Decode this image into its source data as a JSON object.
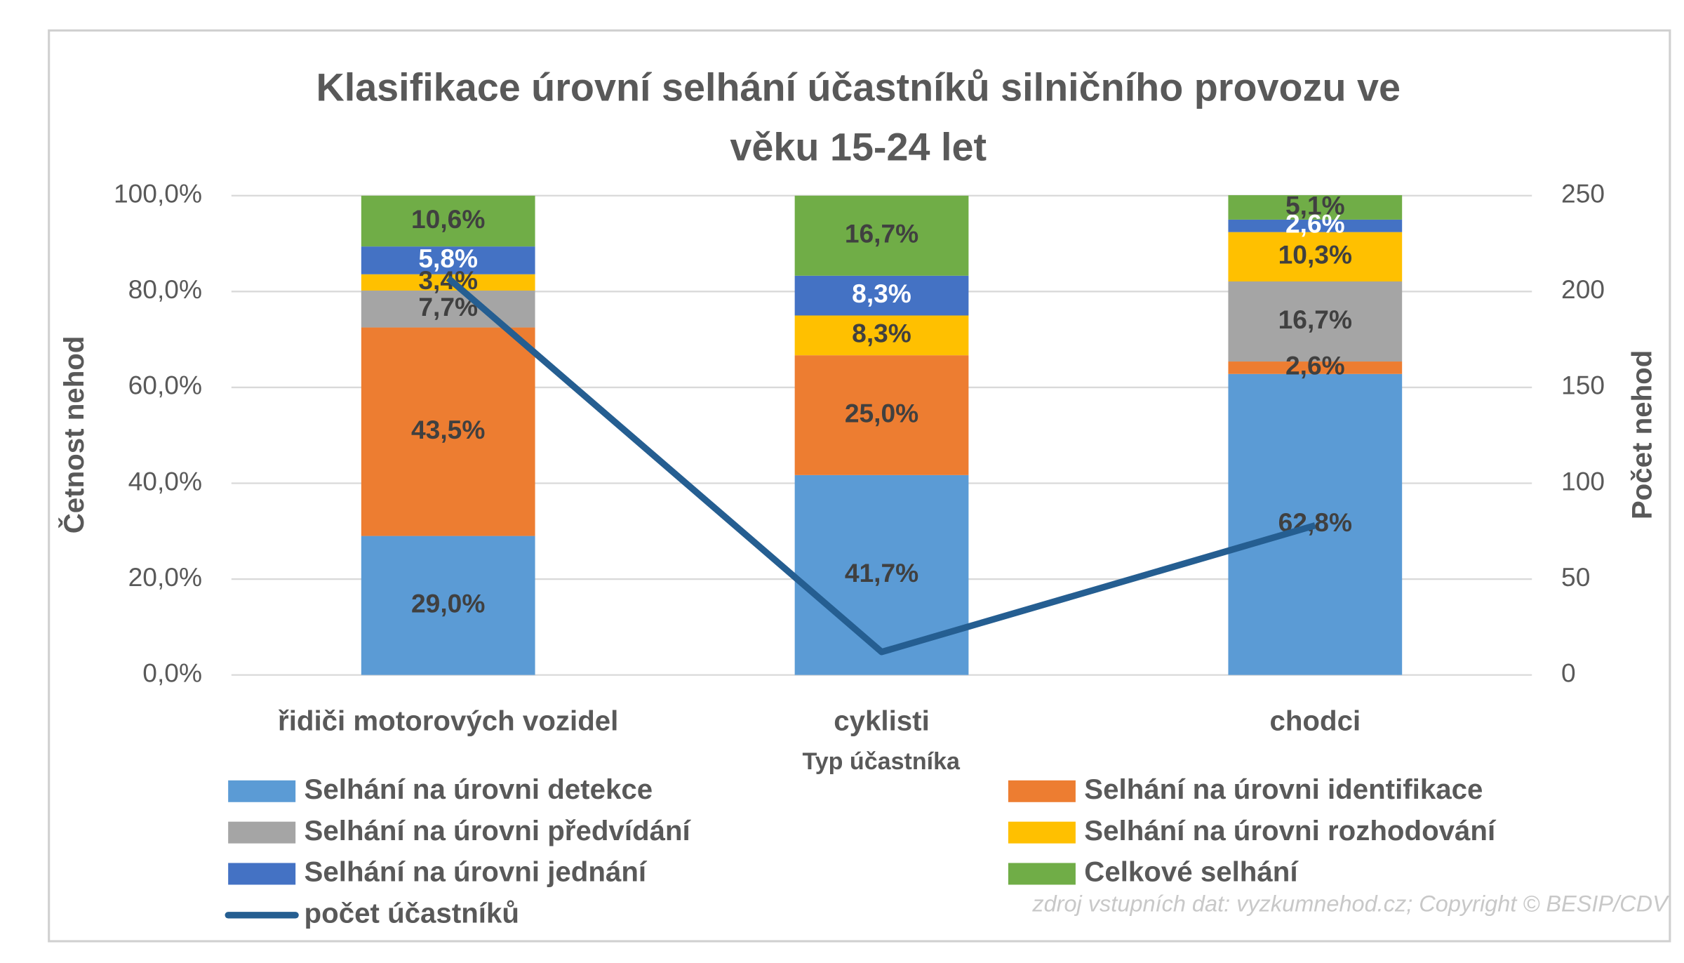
{
  "chart_data": {
    "type": "bar",
    "stacked": true,
    "title": [
      "Klasifikace úrovní selhání účastníků silničního provozu ve",
      "věku 15-24 let"
    ],
    "x_label": "Typ účastníka",
    "y_label": "Četnost nehod",
    "y2_label": "Počet nehod",
    "source": "zdroj vstupních dat: vyzkumnehod.cz; Copyright © BESIP/CDV",
    "categories": [
      "řidiči motorových vozidel",
      "cyklisti",
      "chodci"
    ],
    "ylim": [
      0,
      100
    ],
    "yticks": [
      {
        "value": 0,
        "label": "0,0%"
      },
      {
        "value": 20,
        "label": "20,0%"
      },
      {
        "value": 40,
        "label": "40,0%"
      },
      {
        "value": 60,
        "label": "60,0%"
      },
      {
        "value": 80,
        "label": "80,0%"
      },
      {
        "value": 100,
        "label": "100,0%"
      }
    ],
    "y2lim": [
      0,
      250
    ],
    "y2ticks": [
      0,
      50,
      100,
      150,
      200,
      250
    ],
    "grid": true,
    "series": [
      {
        "name": "Selhání na úrovni detekce",
        "color": "#5b9bd5",
        "label_color": "#404040",
        "values": [
          29.0,
          41.7,
          62.8
        ],
        "value_labels": [
          "29,0%",
          "41,7%",
          "62,8%"
        ]
      },
      {
        "name": "Selhání na úrovni identifikace",
        "color": "#ed7d31",
        "label_color": "#404040",
        "values": [
          43.5,
          25.0,
          2.6
        ],
        "value_labels": [
          "43,5%",
          "25,0%",
          "2,6%"
        ]
      },
      {
        "name": "Selhání na úrovni předvídání",
        "color": "#a5a5a5",
        "label_color": "#404040",
        "values": [
          7.7,
          0,
          16.7
        ],
        "value_labels": [
          "7,7%",
          null,
          "16,7%"
        ]
      },
      {
        "name": "Selhání na úrovni rozhodování",
        "color": "#ffc000",
        "label_color": "#404040",
        "values": [
          3.4,
          8.3,
          10.3
        ],
        "value_labels": [
          "3,4%",
          "8,3%",
          "10,3%"
        ]
      },
      {
        "name": "Selhání na úrovni jednání",
        "color": "#4472c4",
        "label_color": "#ffffff",
        "values": [
          5.8,
          8.3,
          2.6
        ],
        "value_labels": [
          "5,8%",
          "8,3%",
          "2,6%"
        ]
      },
      {
        "name": "Celkové selhání",
        "color": "#70ad47",
        "label_color": "#404040",
        "values": [
          10.6,
          16.7,
          5.1
        ],
        "value_labels": [
          "10,6%",
          "16,7%",
          "5,1%"
        ]
      },
      {
        "name": "počet účastníků",
        "type": "line",
        "axis": "y2",
        "color": "#255e91",
        "values": [
          207,
          12,
          78
        ]
      }
    ]
  }
}
